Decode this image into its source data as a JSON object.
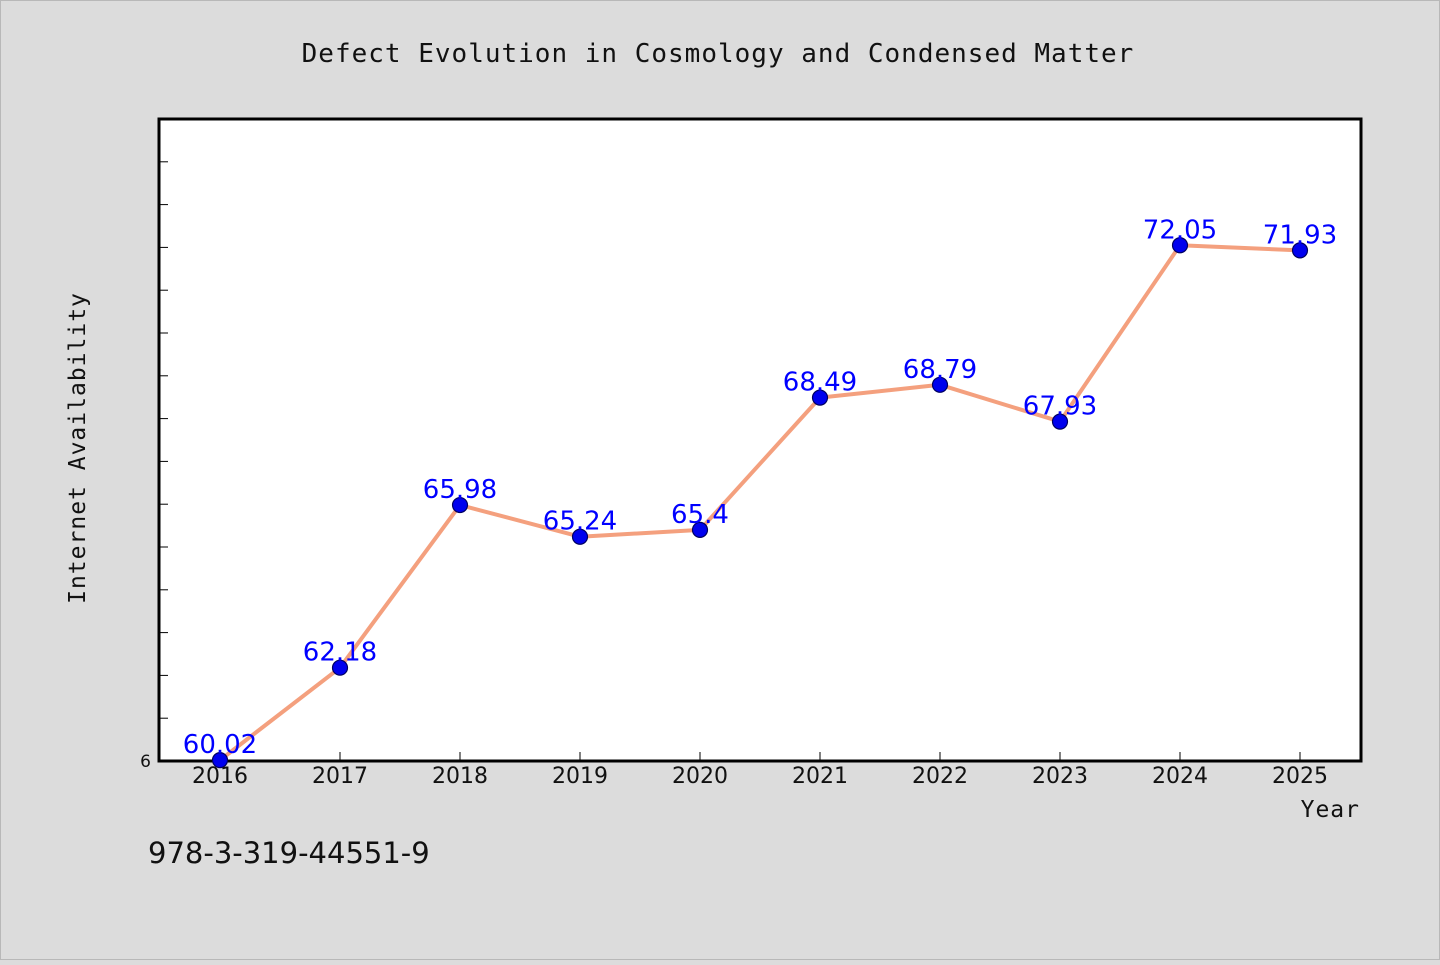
{
  "chart_data": {
    "type": "line",
    "title": "Defect Evolution in Cosmology and Condensed Matter",
    "xlabel": "Year",
    "ylabel": "Internet Availability",
    "categories": [
      "2016",
      "2017",
      "2018",
      "2019",
      "2020",
      "2021",
      "2022",
      "2023",
      "2024",
      "2025"
    ],
    "series": [
      {
        "values": [
          60.02,
          62.18,
          65.98,
          65.24,
          65.4,
          68.49,
          68.79,
          67.93,
          72.05,
          71.93
        ],
        "data_labels": [
          "60.02",
          "62.18",
          "65.98",
          "65.24",
          "65.4",
          "68.49",
          "68.79",
          "67.93",
          "72.05",
          "71.93"
        ]
      }
    ],
    "y_tick_label": "6",
    "ylim": [
      60,
      75
    ],
    "grid": false,
    "legend": "none",
    "colors": {
      "line": "#f4a07e",
      "marker": "#0000ee",
      "marker_edge": "#000060",
      "data_label": "#0000ff",
      "plot_background": "#ffffff",
      "page_background": "#dcdcdc"
    }
  },
  "footer": {
    "isbn": "978-3-319-44551-9"
  }
}
